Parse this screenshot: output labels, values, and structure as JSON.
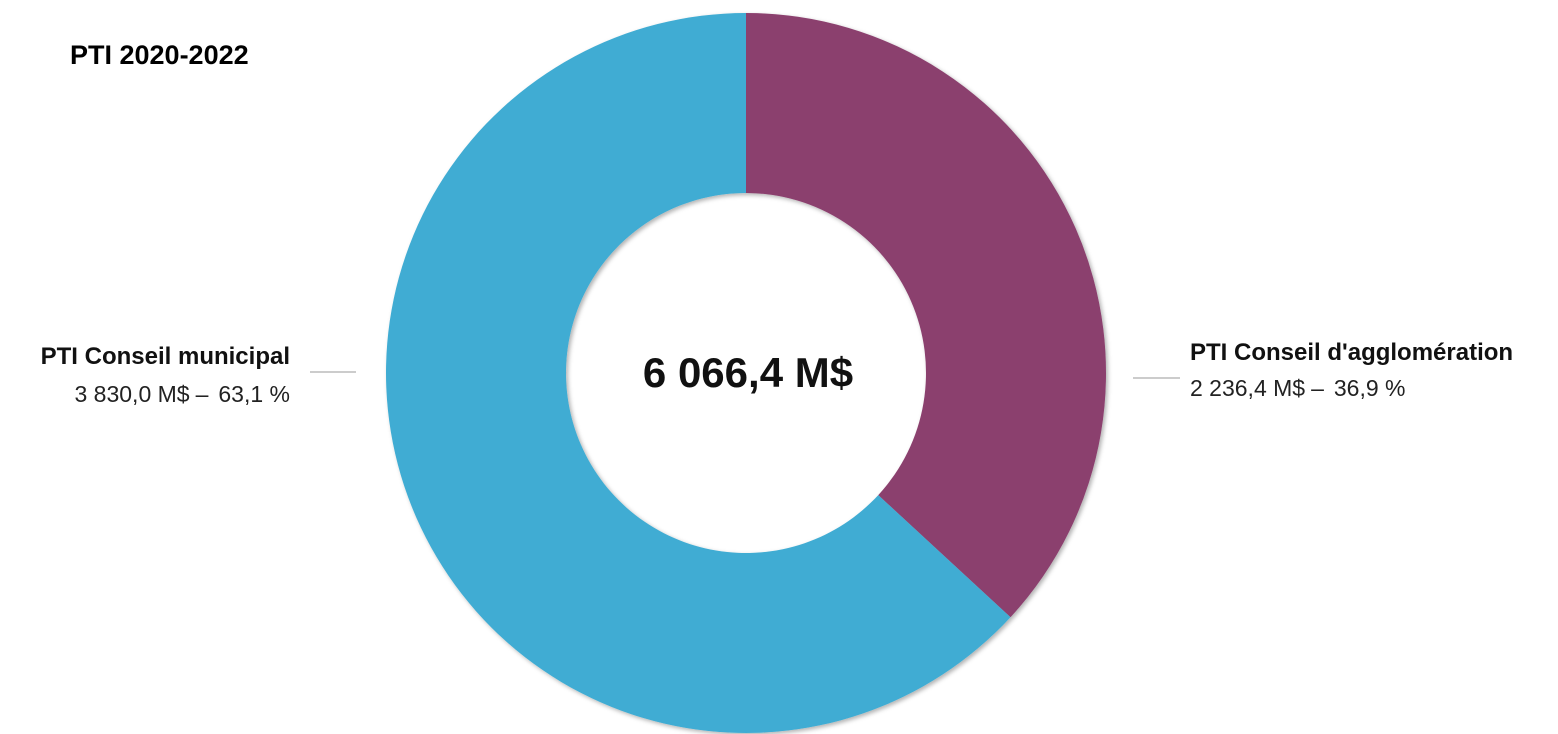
{
  "chart_data": {
    "type": "donut",
    "title": "PTI 2020-2022",
    "categories": [
      "PTI Conseil d'agglomération",
      "PTI Conseil municipal"
    ],
    "values": [
      2236.4,
      3830.0
    ],
    "value_labels": [
      "2 236,4 M$",
      "3 830,0 M$"
    ],
    "percents": [
      36.9,
      63.1
    ],
    "percent_labels": [
      "36,9 %",
      "63,1 %"
    ],
    "separator": "–",
    "colors": [
      "#8b3f6e",
      "#41acd3"
    ],
    "center_label": "6 066,4 M$"
  }
}
